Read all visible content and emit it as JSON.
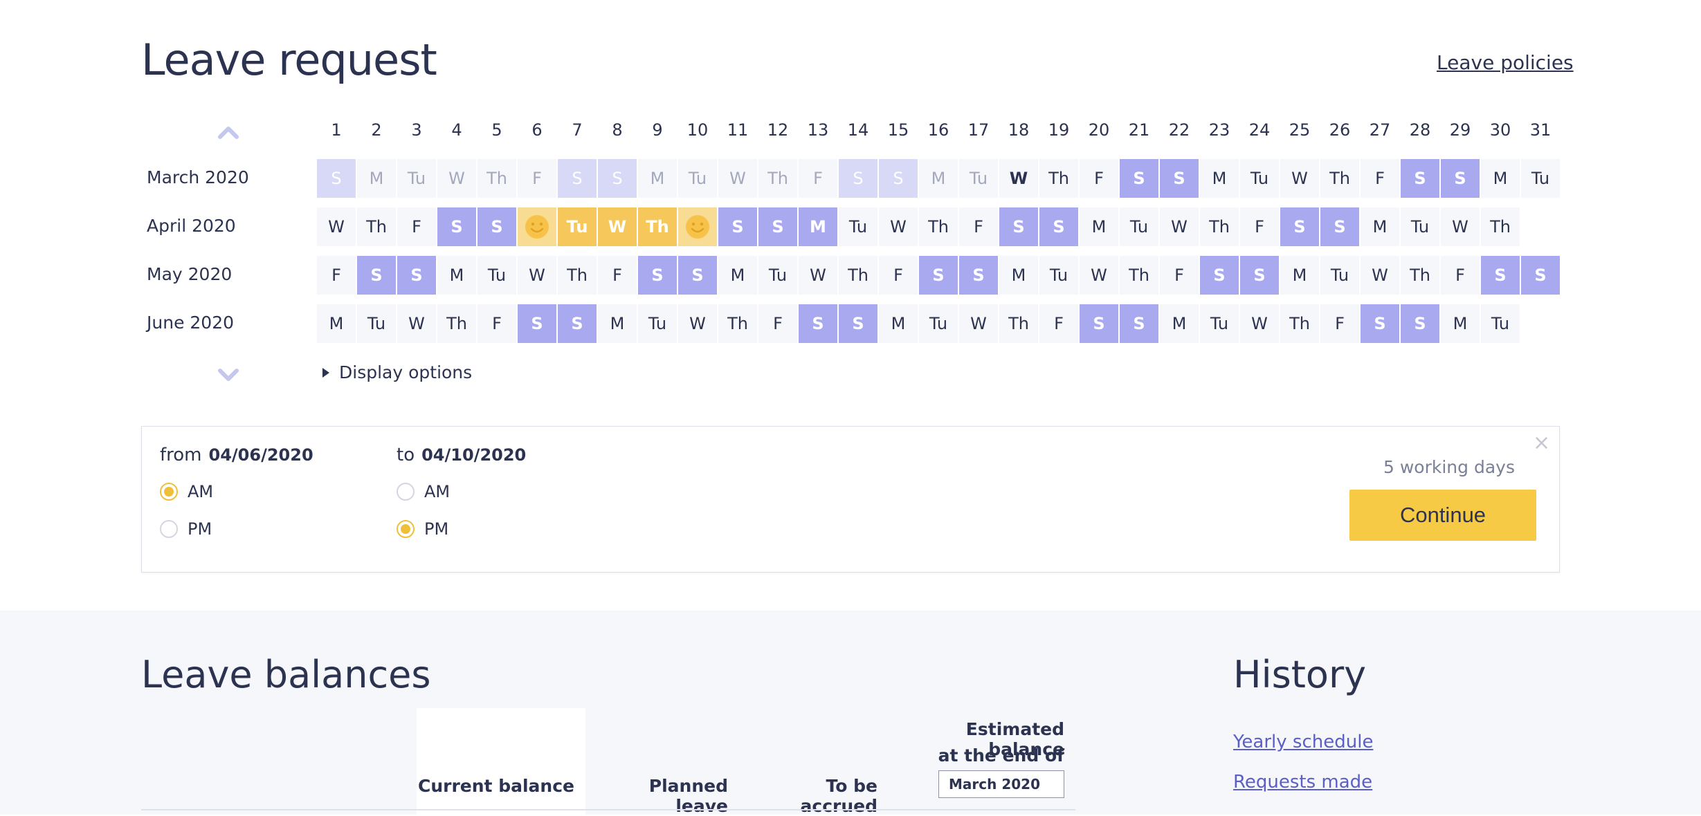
{
  "header": {
    "title": "Leave request",
    "policies_link": "Leave policies"
  },
  "calendar": {
    "days": [
      "1",
      "2",
      "3",
      "4",
      "5",
      "6",
      "7",
      "8",
      "9",
      "10",
      "11",
      "12",
      "13",
      "14",
      "15",
      "16",
      "17",
      "18",
      "19",
      "20",
      "21",
      "22",
      "23",
      "24",
      "25",
      "26",
      "27",
      "28",
      "29",
      "30",
      "31"
    ],
    "months": [
      {
        "label": "March 2020",
        "cells": [
          "S",
          "M",
          "Tu",
          "W",
          "Th",
          "F",
          "S",
          "S",
          "M",
          "Tu",
          "W",
          "Th",
          "F",
          "S",
          "S",
          "M",
          "Tu",
          "W",
          "Th",
          "F",
          "S",
          "S",
          "M",
          "Tu",
          "W",
          "Th",
          "F",
          "S",
          "S",
          "M",
          "Tu"
        ]
      },
      {
        "label": "April 2020",
        "cells": [
          "W",
          "Th",
          "F",
          "S",
          "S",
          "",
          "Tu",
          "W",
          "Th",
          "",
          "S",
          "S",
          "M",
          "Tu",
          "W",
          "Th",
          "F",
          "S",
          "S",
          "M",
          "Tu",
          "W",
          "Th",
          "F",
          "S",
          "S",
          "M",
          "Tu",
          "W",
          "Th"
        ]
      },
      {
        "label": "May 2020",
        "cells": [
          "F",
          "S",
          "S",
          "M",
          "Tu",
          "W",
          "Th",
          "F",
          "S",
          "S",
          "M",
          "Tu",
          "W",
          "Th",
          "F",
          "S",
          "S",
          "M",
          "Tu",
          "W",
          "Th",
          "F",
          "S",
          "S",
          "M",
          "Tu",
          "W",
          "Th",
          "F",
          "S",
          "S"
        ]
      },
      {
        "label": "June 2020",
        "cells": [
          "M",
          "Tu",
          "W",
          "Th",
          "F",
          "S",
          "S",
          "M",
          "Tu",
          "W",
          "Th",
          "F",
          "S",
          "S",
          "M",
          "Tu",
          "W",
          "Th",
          "F",
          "S",
          "S",
          "M",
          "Tu",
          "W",
          "Th",
          "F",
          "S",
          "S",
          "M",
          "Tu"
        ]
      }
    ],
    "display_options": "Display options",
    "icons": {
      "up": "chevron-up-icon",
      "down": "chevron-down-icon",
      "toggle": "triangle-right-icon",
      "smile": "smiley-face-icon"
    }
  },
  "request": {
    "from_label": "from",
    "from_date": "04/06/2020",
    "to_label": "to",
    "to_date": "04/10/2020",
    "am_label": "AM",
    "pm_label": "PM",
    "from_selected": "AM",
    "to_selected": "PM",
    "working_days": "5 working days",
    "continue_label": "Continue",
    "close_glyph": "×"
  },
  "balances": {
    "title": "Leave balances",
    "col_current": "Current balance",
    "col_planned": "Planned leave",
    "col_accrued": "To be accrued",
    "col_estimated_line1": "Estimated balance",
    "col_estimated_line2": "at the end of",
    "estimated_month": "March 2020"
  },
  "history": {
    "title": "History",
    "links": [
      "Yearly schedule",
      "Requests made"
    ]
  },
  "colors": {
    "weekend": "#a8a9ef",
    "weekend_past": "#d8d8f7",
    "leave": "#f6c85b",
    "accent": "#f6ca45",
    "text": "#2c3350"
  }
}
